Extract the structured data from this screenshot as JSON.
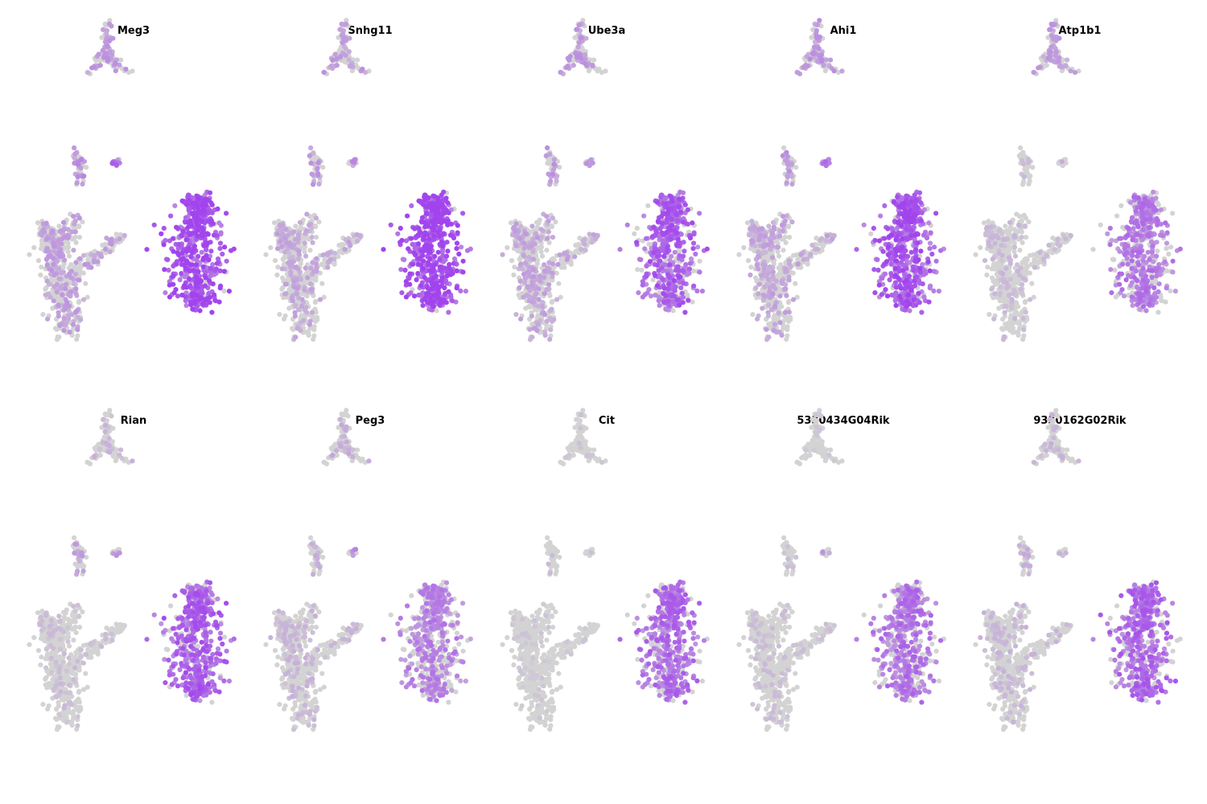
{
  "chart_data": {
    "type": "scatter",
    "description_kind": "UMAP feature plots (gene expression)",
    "embedding": "UMAP",
    "colors": {
      "low": "#d3d3d3",
      "high": "#a244ee"
    },
    "clusters": [
      "top-branch",
      "small-left",
      "small-right",
      "large-left",
      "large-right"
    ],
    "panels": [
      {
        "title": "Meg3",
        "expression": {
          "top-branch": 0.4,
          "small-left": 0.45,
          "small-right": 0.7,
          "large-left": 0.35,
          "large-right": 0.92
        }
      },
      {
        "title": "Snhg11",
        "expression": {
          "top-branch": 0.38,
          "small-left": 0.4,
          "small-right": 0.45,
          "large-left": 0.3,
          "large-right": 0.97
        }
      },
      {
        "title": "Ube3a",
        "expression": {
          "top-branch": 0.4,
          "small-left": 0.4,
          "small-right": 0.45,
          "large-left": 0.32,
          "large-right": 0.78
        }
      },
      {
        "title": "Ahi1",
        "expression": {
          "top-branch": 0.4,
          "small-left": 0.42,
          "small-right": 0.6,
          "large-left": 0.32,
          "large-right": 0.85
        }
      },
      {
        "title": "Atp1b1",
        "expression": {
          "top-branch": 0.38,
          "small-left": 0.15,
          "small-right": 0.3,
          "large-left": 0.18,
          "large-right": 0.6
        }
      },
      {
        "title": "Rian",
        "expression": {
          "top-branch": 0.2,
          "small-left": 0.35,
          "small-right": 0.4,
          "large-left": 0.15,
          "large-right": 0.78
        }
      },
      {
        "title": "Peg3",
        "expression": {
          "top-branch": 0.25,
          "small-left": 0.25,
          "small-right": 0.5,
          "large-left": 0.2,
          "large-right": 0.55
        }
      },
      {
        "title": "Cit",
        "expression": {
          "top-branch": 0.12,
          "small-left": 0.15,
          "small-right": 0.15,
          "large-left": 0.1,
          "large-right": 0.7
        }
      },
      {
        "title": "5330434G04Rik",
        "expression": {
          "top-branch": 0.1,
          "small-left": 0.15,
          "small-right": 0.45,
          "large-left": 0.15,
          "large-right": 0.65
        }
      },
      {
        "title": "9330162G02Rik",
        "expression": {
          "top-branch": 0.22,
          "small-left": 0.25,
          "small-right": 0.2,
          "large-left": 0.2,
          "large-right": 0.72
        }
      }
    ],
    "layout": {
      "rows": 2,
      "cols": 5
    },
    "axes": "hidden",
    "legend": "none"
  }
}
